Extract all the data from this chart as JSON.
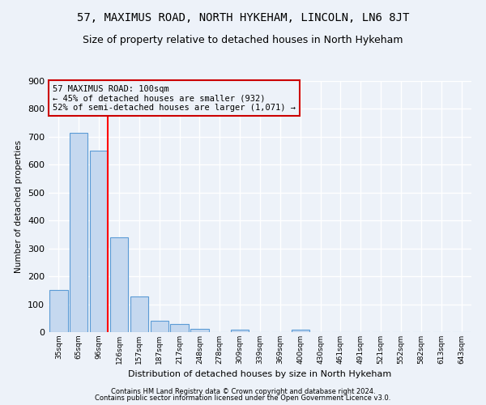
{
  "title": "57, MAXIMUS ROAD, NORTH HYKEHAM, LINCOLN, LN6 8JT",
  "subtitle": "Size of property relative to detached houses in North Hykeham",
  "xlabel": "Distribution of detached houses by size in North Hykeham",
  "ylabel": "Number of detached properties",
  "bin_labels": [
    "35sqm",
    "65sqm",
    "96sqm",
    "126sqm",
    "157sqm",
    "187sqm",
    "217sqm",
    "248sqm",
    "278sqm",
    "309sqm",
    "339sqm",
    "369sqm",
    "400sqm",
    "430sqm",
    "461sqm",
    "491sqm",
    "521sqm",
    "552sqm",
    "582sqm",
    "613sqm",
    "643sqm"
  ],
  "bar_values": [
    150,
    715,
    650,
    340,
    128,
    40,
    28,
    12,
    0,
    8,
    0,
    0,
    8,
    0,
    0,
    0,
    0,
    0,
    0,
    0,
    0
  ],
  "bar_color": "#c5d8ef",
  "bar_edge_color": "#5b9bd5",
  "red_line_index": 2,
  "annotation_line1": "57 MAXIMUS ROAD: 100sqm",
  "annotation_line2": "← 45% of detached houses are smaller (932)",
  "annotation_line3": "52% of semi-detached houses are larger (1,071) →",
  "annotation_box_color": "#cc0000",
  "ylim": [
    0,
    900
  ],
  "yticks": [
    0,
    100,
    200,
    300,
    400,
    500,
    600,
    700,
    800,
    900
  ],
  "footer_line1": "Contains HM Land Registry data © Crown copyright and database right 2024.",
  "footer_line2": "Contains public sector information licensed under the Open Government Licence v3.0.",
  "bg_color": "#edf2f9",
  "grid_color": "#ffffff",
  "title_fontsize": 10,
  "subtitle_fontsize": 9,
  "annot_fontsize": 7.5,
  "footer_fontsize": 6
}
